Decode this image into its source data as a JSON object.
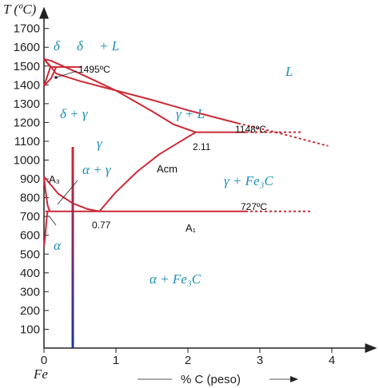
{
  "chart_data": {
    "type": "line",
    "y_axis_title": "T (ºC)",
    "x_axis_origin_label": "Fe",
    "x_axis_title": "% C (peso)",
    "xlim": [
      0,
      4.5
    ],
    "ylim": [
      0,
      1800
    ],
    "x_ticks": [
      0,
      1,
      2,
      3,
      4
    ],
    "y_ticks": [
      100,
      200,
      300,
      400,
      500,
      600,
      700,
      800,
      900,
      1000,
      1100,
      1200,
      1300,
      1400,
      1500,
      1600,
      1700
    ],
    "line_color": "#cc2a36",
    "label_color": "#1b8fb3",
    "series": [
      {
        "points": [
          [
            0,
            1538
          ],
          [
            0.1,
            1495
          ],
          [
            0.17,
            1460
          ],
          [
            0.5,
            1420
          ],
          [
            1.0,
            1370
          ],
          [
            1.5,
            1320
          ],
          [
            2.0,
            1265
          ],
          [
            2.5,
            1215
          ],
          [
            2.7,
            1195
          ]
        ],
        "dash": false
      },
      {
        "points": [
          [
            2.7,
            1195
          ],
          [
            3.2,
            1150
          ],
          [
            3.95,
            1075
          ]
        ],
        "dash": true
      },
      {
        "points": [
          [
            0,
            1538
          ],
          [
            0.1,
            1528
          ],
          [
            0.5,
            1460
          ],
          [
            1.0,
            1370
          ],
          [
            1.5,
            1260
          ],
          [
            1.8,
            1190
          ],
          [
            2.11,
            1148
          ]
        ],
        "dash": false
      },
      {
        "points": [
          [
            0,
            1538
          ],
          [
            0.09,
            1495
          ]
        ],
        "dash": false
      },
      {
        "points": [
          [
            0,
            1394
          ],
          [
            0.09,
            1495
          ]
        ],
        "dash": false
      },
      {
        "points": [
          [
            0.09,
            1495
          ],
          [
            0.53,
            1495
          ]
        ],
        "dash": false
      },
      {
        "points": [
          [
            0,
            1394
          ],
          [
            0.1,
            1435
          ],
          [
            0.17,
            1495
          ]
        ],
        "dash": false
      },
      {
        "points": [
          [
            2.11,
            1148
          ],
          [
            2.8,
            1148
          ]
        ],
        "dash": false
      },
      {
        "points": [
          [
            2.8,
            1148
          ],
          [
            3.6,
            1148
          ]
        ],
        "dash": true
      },
      {
        "points": [
          [
            0,
            912
          ],
          [
            0.2,
            820
          ],
          [
            0.4,
            770
          ],
          [
            0.6,
            740
          ],
          [
            0.77,
            727
          ]
        ],
        "dash": false
      },
      {
        "points": [
          [
            0.77,
            727
          ],
          [
            1.0,
            830
          ],
          [
            1.3,
            940
          ],
          [
            1.6,
            1030
          ],
          [
            1.9,
            1100
          ],
          [
            2.11,
            1148
          ]
        ],
        "dash": false
      },
      {
        "points": [
          [
            0.02,
            727
          ],
          [
            2.8,
            727
          ]
        ],
        "dash": false
      },
      {
        "points": [
          [
            2.8,
            727
          ],
          [
            3.7,
            727
          ]
        ],
        "dash": true
      },
      {
        "points": [
          [
            0,
            912
          ],
          [
            0.02,
            840
          ],
          [
            0.05,
            760
          ],
          [
            0.08,
            727
          ]
        ],
        "dash": false
      },
      {
        "points": [
          [
            0,
            540
          ],
          [
            0.02,
            610
          ],
          [
            0.04,
            700
          ],
          [
            0.05,
            727
          ]
        ],
        "dash": false
      }
    ],
    "vertical_marker": {
      "x": 0.4,
      "y_from": 0,
      "y_to": 1070,
      "color_top": "#cc2a36",
      "color_bottom": "#22339a"
    },
    "annotations": {
      "temp_1495": "1495ºC",
      "temp_1148": "1148ºC",
      "temp_727": "727ºC",
      "comp_211": "2.11",
      "comp_077": "0.77",
      "line_a3": "A₃",
      "line_acm": "Acm",
      "line_a1": "A₁"
    },
    "phases": {
      "delta_left": "δ",
      "delta_right": "δ",
      "delta_plus_l": "+ L",
      "liquid": "L",
      "delta_gamma": "δ + γ",
      "gamma_l": "γ + L",
      "gamma": "γ",
      "alpha_gamma": "α + γ",
      "gamma_fe3c": "γ + Fe₃C",
      "alpha": "α",
      "alpha_fe3c": "α + Fe₃C"
    }
  }
}
